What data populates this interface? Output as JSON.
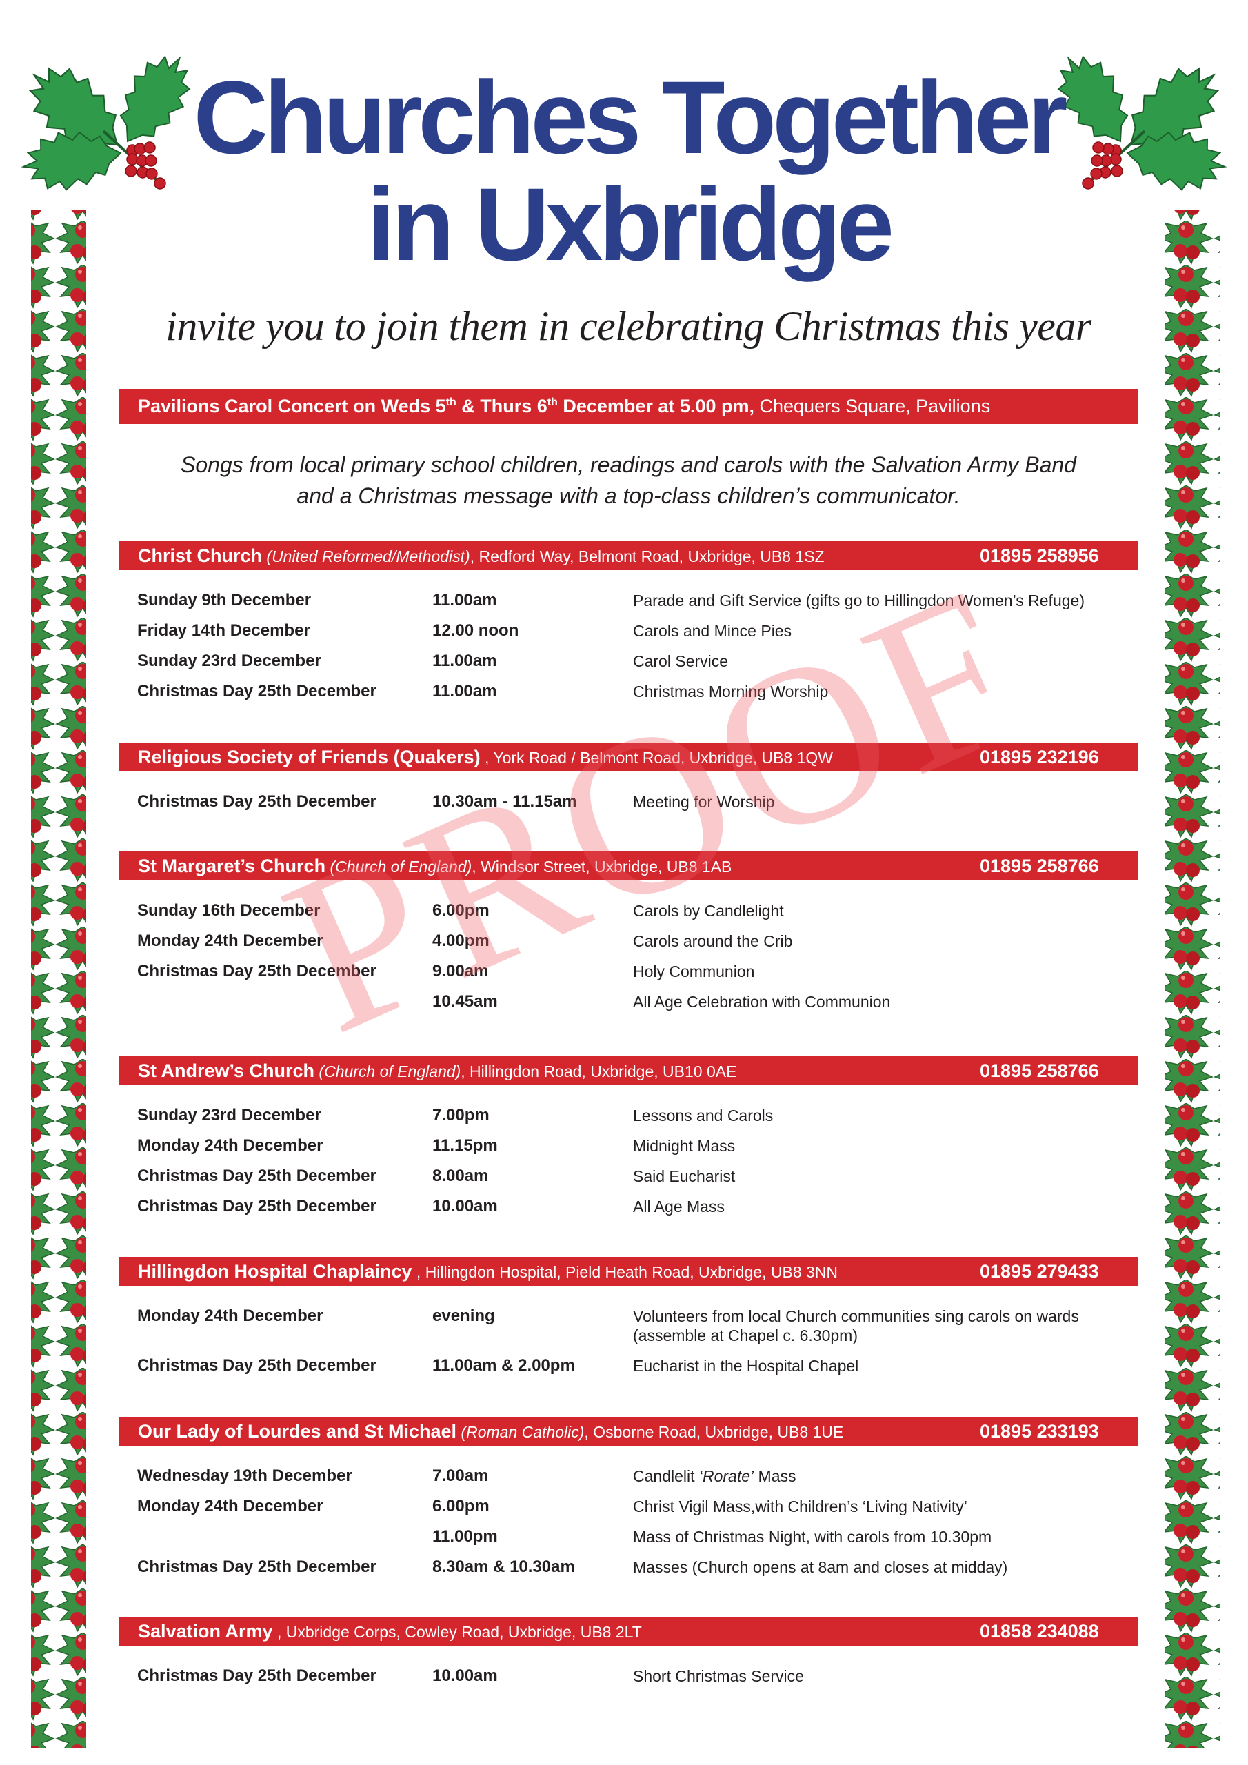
{
  "colors": {
    "title_blue": "#2b3f8a",
    "bar_red": "#d4262d",
    "holly_green": "#2e9a4a",
    "berry_red": "#c8202a"
  },
  "header": {
    "title_line1": "Churches Together",
    "title_line2": "in Uxbridge",
    "tagline": "invite you to join them in celebrating Christmas this year"
  },
  "pavilions": {
    "bold_a": "Pavilions Carol Concert on Weds 5",
    "sup1": "th",
    "bold_b": " & Thurs 6",
    "sup2": "th",
    "bold_c": " December at 5.00 pm,",
    "location": " Chequers Square, Pavilions",
    "intro_line1": "Songs from local primary school children, readings and carols with the Salvation Army Band",
    "intro_line2": "and a Christmas message with a top-class children’s communicator."
  },
  "watermark": "PROOF",
  "sections": [
    {
      "name": "Christ Church",
      "denomination": "(United Reformed/Methodist)",
      "address": ", Redford Way, Belmont Road, Uxbridge, UB8 1SZ",
      "phone": "01895 258956",
      "rows": [
        {
          "day": "Sunday 9th December",
          "time": "11.00am",
          "desc": [
            "Parade and Gift Service (gifts go to Hillingdon Women’s Refuge)"
          ]
        },
        {
          "day": "Friday 14th December",
          "time": "12.00 noon",
          "desc": [
            "Carols and Mince Pies"
          ]
        },
        {
          "day": "Sunday 23rd December",
          "time": "11.00am",
          "desc": [
            "Carol Service"
          ]
        },
        {
          "day": "Christmas Day 25th December",
          "time": "11.00am",
          "desc": [
            "Christmas Morning Worship"
          ]
        }
      ]
    },
    {
      "name": "Religious Society of Friends (Quakers)",
      "denomination": "",
      "address": ", York Road / Belmont Road, Uxbridge, UB8 1QW",
      "phone": "01895 232196",
      "rows": [
        {
          "day": "Christmas Day 25th December",
          "time": "10.30am - 11.15am",
          "desc": [
            "Meeting for Worship"
          ]
        }
      ]
    },
    {
      "name": "St Margaret’s Church",
      "denomination": "(Church of England)",
      "address": ", Windsor Street, Uxbridge, UB8 1AB",
      "phone": "01895 258766",
      "rows": [
        {
          "day": "Sunday 16th December",
          "time": "6.00pm",
          "desc": [
            "Carols by Candlelight"
          ]
        },
        {
          "day": "Monday 24th December",
          "time": "4.00pm",
          "desc": [
            "Carols around the Crib"
          ]
        },
        {
          "day": "Christmas Day 25th December",
          "time": "9.00am",
          "desc": [
            "Holy Communion"
          ]
        },
        {
          "day": "",
          "time": "10.45am",
          "desc": [
            "All Age Celebration with Communion"
          ]
        }
      ]
    },
    {
      "name": "St Andrew’s Church",
      "denomination": "(Church of England)",
      "address": ", Hillingdon Road, Uxbridge, UB10 0AE",
      "phone": "01895 258766",
      "rows": [
        {
          "day": "Sunday 23rd December",
          "time": "7.00pm",
          "desc": [
            "Lessons and Carols"
          ]
        },
        {
          "day": "Monday 24th December",
          "time": "11.15pm",
          "desc": [
            "Midnight Mass"
          ]
        },
        {
          "day": "Christmas Day 25th December",
          "time": "8.00am",
          "desc": [
            "Said Eucharist"
          ]
        },
        {
          "day": "Christmas Day 25th December",
          "time": "10.00am",
          "desc": [
            "All Age Mass"
          ]
        }
      ]
    },
    {
      "name": "Hillingdon Hospital Chaplaincy",
      "denomination": "",
      "address": ", Hillingdon Hospital, Pield Heath Road, Uxbridge, UB8 3NN",
      "phone": "01895 279433",
      "rows": [
        {
          "day": "Monday 24th December",
          "time": "evening",
          "desc": [
            "Volunteers from local Church communities sing carols on wards",
            "(assemble at Chapel c. 6.30pm)"
          ]
        },
        {
          "day": "Christmas Day 25th December",
          "time": "11.00am & 2.00pm",
          "desc": [
            "Eucharist in the Hospital Chapel"
          ]
        }
      ]
    },
    {
      "name": "Our Lady of Lourdes and St Michael",
      "denomination": "(Roman Catholic)",
      "address": ", Osborne Road, Uxbridge, UB8 1UE",
      "phone": "01895 233193",
      "rows": [
        {
          "day": "Wednesday 19th December",
          "time": "7.00am",
          "desc": [
            "Candlelit ‘Rorate’ Mass"
          ]
        },
        {
          "day": "Monday 24th December",
          "time": "6.00pm",
          "desc": [
            "Christ Vigil Mass,with Children’s ‘Living Nativity’"
          ]
        },
        {
          "day": "",
          "time": "11.00pm",
          "desc": [
            "Mass of Christmas Night,  with carols from 10.30pm"
          ]
        },
        {
          "day": "Christmas Day 25th December",
          "time": "8.30am & 10.30am",
          "desc": [
            "Masses (Church opens at 8am and closes at midday)"
          ]
        }
      ]
    },
    {
      "name": "Salvation Army",
      "denomination": "",
      "address": ", Uxbridge Corps, Cowley Road, Uxbridge, UB8 2LT",
      "phone": "01858 234088",
      "rows": [
        {
          "day": "Christmas Day 25th December",
          "time": "10.00am",
          "desc": [
            "Short Christmas Service"
          ]
        }
      ]
    }
  ]
}
